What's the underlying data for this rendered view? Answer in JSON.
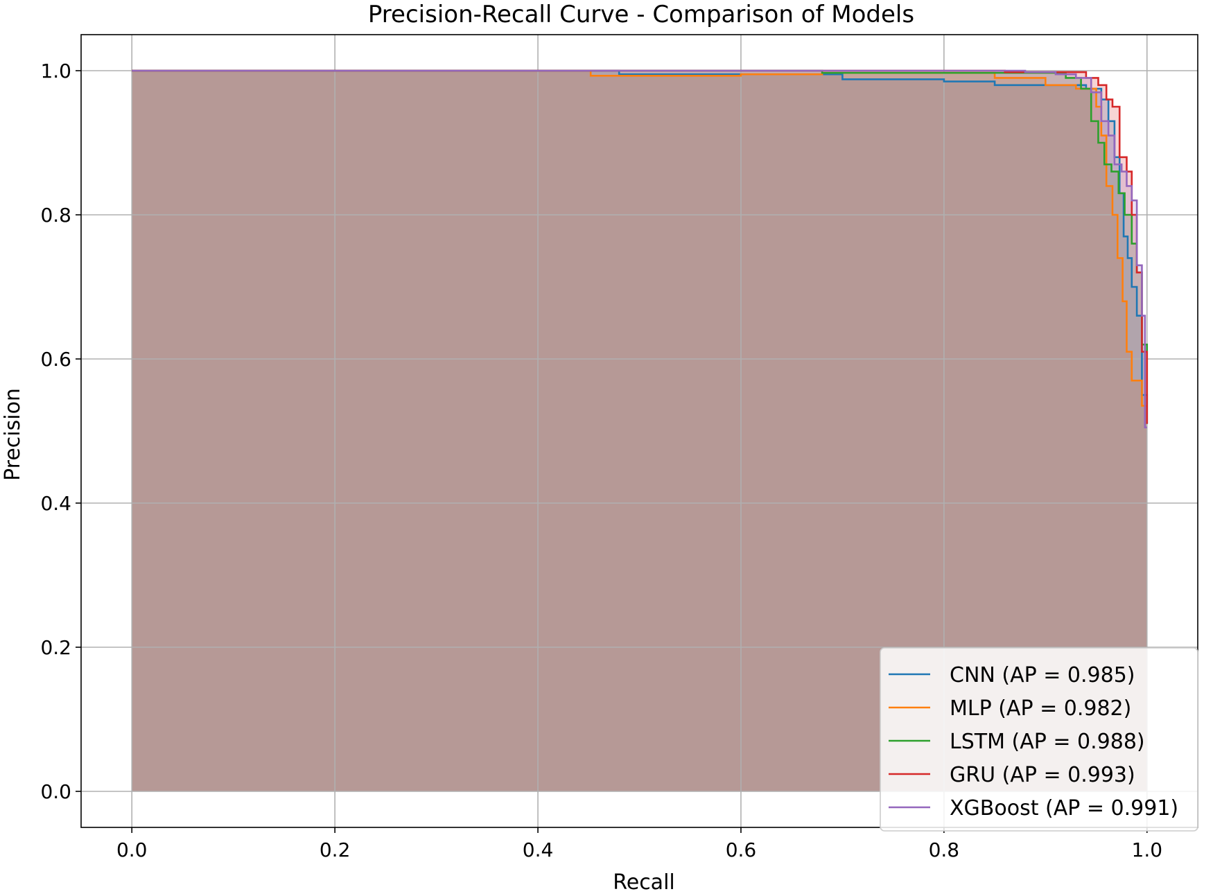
{
  "chart_data": {
    "type": "line",
    "title": "Precision-Recall Curve - Comparison of Models",
    "xlabel": "Recall",
    "ylabel": "Precision",
    "xlim": [
      -0.05,
      1.05
    ],
    "ylim": [
      -0.05,
      1.05
    ],
    "xticks": [
      0.0,
      0.2,
      0.4,
      0.6,
      0.8,
      1.0
    ],
    "yticks": [
      0.0,
      0.2,
      0.4,
      0.6,
      0.8,
      1.0
    ],
    "xtick_labels": [
      "0.0",
      "0.2",
      "0.4",
      "0.6",
      "0.8",
      "1.0"
    ],
    "ytick_labels": [
      "0.0",
      "0.2",
      "0.4",
      "0.6",
      "0.8",
      "1.0"
    ],
    "grid": true,
    "legend_position": "lower-right",
    "fill_under_curves": true,
    "series": [
      {
        "name": "CNN",
        "label": "CNN (AP = 0.985)",
        "color": "#1f77b4",
        "points": [
          [
            0.0,
            1.0
          ],
          [
            0.48,
            1.0
          ],
          [
            0.48,
            0.995
          ],
          [
            0.7,
            0.995
          ],
          [
            0.7,
            0.988
          ],
          [
            0.8,
            0.988
          ],
          [
            0.8,
            0.985
          ],
          [
            0.85,
            0.985
          ],
          [
            0.85,
            0.98
          ],
          [
            0.94,
            0.98
          ],
          [
            0.94,
            0.975
          ],
          [
            0.955,
            0.975
          ],
          [
            0.955,
            0.96
          ],
          [
            0.962,
            0.96
          ],
          [
            0.962,
            0.93
          ],
          [
            0.968,
            0.93
          ],
          [
            0.968,
            0.88
          ],
          [
            0.973,
            0.88
          ],
          [
            0.973,
            0.83
          ],
          [
            0.977,
            0.83
          ],
          [
            0.977,
            0.77
          ],
          [
            0.981,
            0.77
          ],
          [
            0.981,
            0.74
          ],
          [
            0.985,
            0.74
          ],
          [
            0.985,
            0.7
          ],
          [
            0.99,
            0.7
          ],
          [
            0.99,
            0.66
          ],
          [
            0.995,
            0.66
          ],
          [
            0.995,
            0.55
          ],
          [
            1.0,
            0.55
          ],
          [
            1.0,
            0.51
          ]
        ]
      },
      {
        "name": "MLP",
        "label": "MLP (AP = 0.982)",
        "color": "#ff7f0e",
        "points": [
          [
            0.0,
            1.0
          ],
          [
            0.452,
            1.0
          ],
          [
            0.452,
            0.993
          ],
          [
            0.6,
            0.993
          ],
          [
            0.6,
            0.995
          ],
          [
            0.68,
            0.995
          ],
          [
            0.68,
            0.997
          ],
          [
            0.85,
            0.997
          ],
          [
            0.85,
            0.99
          ],
          [
            0.9,
            0.99
          ],
          [
            0.9,
            0.98
          ],
          [
            0.93,
            0.98
          ],
          [
            0.93,
            0.975
          ],
          [
            0.95,
            0.975
          ],
          [
            0.95,
            0.95
          ],
          [
            0.955,
            0.95
          ],
          [
            0.955,
            0.91
          ],
          [
            0.96,
            0.91
          ],
          [
            0.96,
            0.84
          ],
          [
            0.966,
            0.84
          ],
          [
            0.966,
            0.8
          ],
          [
            0.971,
            0.8
          ],
          [
            0.971,
            0.74
          ],
          [
            0.976,
            0.74
          ],
          [
            0.976,
            0.68
          ],
          [
            0.98,
            0.68
          ],
          [
            0.98,
            0.61
          ],
          [
            0.985,
            0.61
          ],
          [
            0.985,
            0.57
          ],
          [
            0.995,
            0.57
          ],
          [
            0.995,
            0.535
          ],
          [
            1.0,
            0.535
          ]
        ]
      },
      {
        "name": "LSTM",
        "label": "LSTM (AP = 0.988)",
        "color": "#2ca02c",
        "points": [
          [
            0.0,
            1.0
          ],
          [
            0.68,
            1.0
          ],
          [
            0.68,
            0.997
          ],
          [
            0.92,
            0.997
          ],
          [
            0.92,
            0.99
          ],
          [
            0.935,
            0.99
          ],
          [
            0.935,
            0.975
          ],
          [
            0.945,
            0.975
          ],
          [
            0.945,
            0.93
          ],
          [
            0.952,
            0.93
          ],
          [
            0.952,
            0.9
          ],
          [
            0.958,
            0.9
          ],
          [
            0.958,
            0.87
          ],
          [
            0.965,
            0.87
          ],
          [
            0.965,
            0.86
          ],
          [
            0.972,
            0.86
          ],
          [
            0.972,
            0.83
          ],
          [
            0.978,
            0.83
          ],
          [
            0.978,
            0.8
          ],
          [
            0.985,
            0.8
          ],
          [
            0.985,
            0.76
          ],
          [
            0.99,
            0.76
          ],
          [
            0.99,
            0.72
          ],
          [
            0.995,
            0.72
          ],
          [
            0.995,
            0.62
          ],
          [
            1.0,
            0.62
          ],
          [
            1.0,
            0.51
          ]
        ]
      },
      {
        "name": "GRU",
        "label": "GRU (AP = 0.993)",
        "color": "#d62728",
        "points": [
          [
            0.0,
            1.0
          ],
          [
            0.86,
            1.0
          ],
          [
            0.86,
            0.998
          ],
          [
            0.94,
            0.998
          ],
          [
            0.94,
            0.99
          ],
          [
            0.952,
            0.99
          ],
          [
            0.952,
            0.98
          ],
          [
            0.96,
            0.98
          ],
          [
            0.96,
            0.96
          ],
          [
            0.966,
            0.96
          ],
          [
            0.966,
            0.95
          ],
          [
            0.973,
            0.95
          ],
          [
            0.973,
            0.88
          ],
          [
            0.98,
            0.88
          ],
          [
            0.98,
            0.86
          ],
          [
            0.985,
            0.86
          ],
          [
            0.985,
            0.8
          ],
          [
            0.99,
            0.8
          ],
          [
            0.99,
            0.72
          ],
          [
            0.995,
            0.72
          ],
          [
            0.995,
            0.61
          ],
          [
            1.0,
            0.61
          ],
          [
            1.0,
            0.51
          ]
        ]
      },
      {
        "name": "XGBoost",
        "label": "XGBoost (AP = 0.991)",
        "color": "#9467bd",
        "points": [
          [
            0.0,
            1.0
          ],
          [
            0.88,
            1.0
          ],
          [
            0.88,
            0.998
          ],
          [
            0.91,
            0.998
          ],
          [
            0.91,
            0.995
          ],
          [
            0.93,
            0.995
          ],
          [
            0.93,
            0.99
          ],
          [
            0.945,
            0.99
          ],
          [
            0.945,
            0.97
          ],
          [
            0.955,
            0.97
          ],
          [
            0.955,
            0.93
          ],
          [
            0.962,
            0.93
          ],
          [
            0.962,
            0.91
          ],
          [
            0.968,
            0.91
          ],
          [
            0.968,
            0.87
          ],
          [
            0.975,
            0.87
          ],
          [
            0.975,
            0.86
          ],
          [
            0.98,
            0.86
          ],
          [
            0.98,
            0.84
          ],
          [
            0.985,
            0.84
          ],
          [
            0.985,
            0.82
          ],
          [
            0.99,
            0.82
          ],
          [
            0.99,
            0.73
          ],
          [
            0.995,
            0.73
          ],
          [
            0.995,
            0.66
          ],
          [
            0.998,
            0.66
          ],
          [
            0.998,
            0.505
          ],
          [
            1.0,
            0.505
          ]
        ]
      }
    ]
  }
}
